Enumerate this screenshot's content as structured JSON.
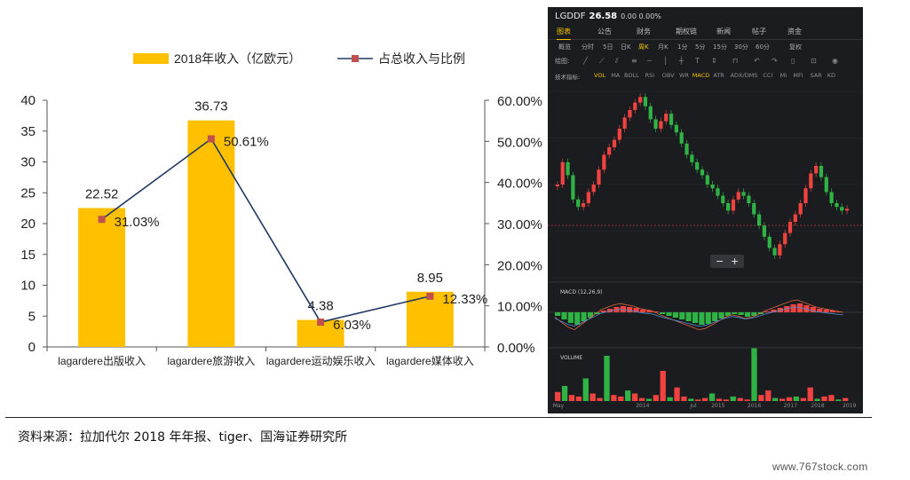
{
  "chart_data": {
    "type": "bar",
    "categories": [
      "lagardere出版收入",
      "lagardere旅游收入",
      "lagardere运动娱乐收入",
      "lagardere媒体收入"
    ],
    "series": [
      {
        "name": "2018年收入（亿欧元）",
        "type": "bar",
        "axis": "left",
        "values": [
          22.52,
          36.73,
          4.38,
          8.95
        ],
        "color": "#FFC000"
      },
      {
        "name": "占总收入与比例",
        "type": "line",
        "axis": "right",
        "values": [
          31.03,
          50.61,
          6.03,
          12.33
        ],
        "color": "#1F3864",
        "marker_color": "#C0504D"
      }
    ],
    "value_labels": [
      "22.52",
      "36.73",
      "4.38",
      "8.95"
    ],
    "pct_labels": [
      "31.03%",
      "50.61%",
      "6.03%",
      "12.33%"
    ],
    "y_left": {
      "min": 0,
      "max": 40,
      "ticks": [
        "0",
        "5",
        "10",
        "15",
        "20",
        "25",
        "30",
        "35",
        "40"
      ]
    },
    "y_right": {
      "min": 0,
      "max": 60,
      "ticks": [
        "0.00%",
        "10.00%",
        "20.00%",
        "30.00%",
        "40.00%",
        "50.00%",
        "60.00%"
      ]
    },
    "legend_position": "top",
    "grid": false
  },
  "stock": {
    "symbol": "LGDDF",
    "price": "26.58",
    "change": "0.00 0.00%",
    "tabs": [
      {
        "label": "图表",
        "active": true
      },
      {
        "label": "公告",
        "active": false
      },
      {
        "label": "财务",
        "active": false
      },
      {
        "label": "期权链",
        "active": false
      },
      {
        "label": "新闻",
        "active": false
      },
      {
        "label": "帖子",
        "active": false
      },
      {
        "label": "资金",
        "active": false
      }
    ],
    "periods": [
      {
        "label": "概览",
        "active": false
      },
      {
        "label": "分时",
        "active": false
      },
      {
        "label": "5日",
        "active": false
      },
      {
        "label": "日K",
        "active": false
      },
      {
        "label": "周K",
        "active": true
      },
      {
        "label": "月K",
        "active": false
      },
      {
        "label": "1分",
        "active": false
      },
      {
        "label": "5分",
        "active": false
      },
      {
        "label": "15分",
        "active": false
      },
      {
        "label": "30分",
        "active": false
      },
      {
        "label": "60分",
        "active": false
      },
      {
        "label": "复权",
        "active": false
      }
    ],
    "draw_label": "绘图:",
    "indicator_label": "技术指标:",
    "indicators": [
      {
        "label": "VOL",
        "hl": true
      },
      {
        "label": "MA",
        "hl": false
      },
      {
        "label": "BOLL",
        "hl": false
      },
      {
        "label": "RSI",
        "hl": false
      },
      {
        "label": "OBV",
        "hl": false
      },
      {
        "label": "WR",
        "hl": false
      },
      {
        "label": "MACD",
        "hl": true
      },
      {
        "label": "ATR",
        "hl": false
      },
      {
        "label": "ADX/DMS",
        "hl": false
      },
      {
        "label": "CCI",
        "hl": false
      },
      {
        "label": "MI",
        "hl": false
      },
      {
        "label": "MFI",
        "hl": false
      },
      {
        "label": "SAR",
        "hl": false
      },
      {
        "label": "KD",
        "hl": false
      }
    ],
    "macd_label": "MACD (12,26,9)",
    "volume_label": "VOLUME",
    "zoom_minus": "−",
    "zoom_plus": "+",
    "x_labels": [
      {
        "label": "May",
        "pos": 0.005
      },
      {
        "label": "2014",
        "pos": 0.28
      },
      {
        "label": "Jul",
        "pos": 0.46
      },
      {
        "label": "2015",
        "pos": 0.53
      },
      {
        "label": "2016",
        "pos": 0.65
      },
      {
        "label": "2017",
        "pos": 0.77
      },
      {
        "label": "2018",
        "pos": 0.86
      },
      {
        "label": "2019",
        "pos": 0.965
      }
    ],
    "colors": {
      "up": "#f0423f",
      "down": "#2fb344",
      "bg": "#1b1c20",
      "accent": "#f5c400"
    }
  },
  "source": "资料来源：拉加代尔 2018 年年报、tiger、国海证券研究所",
  "watermark": "www.767stock.com"
}
